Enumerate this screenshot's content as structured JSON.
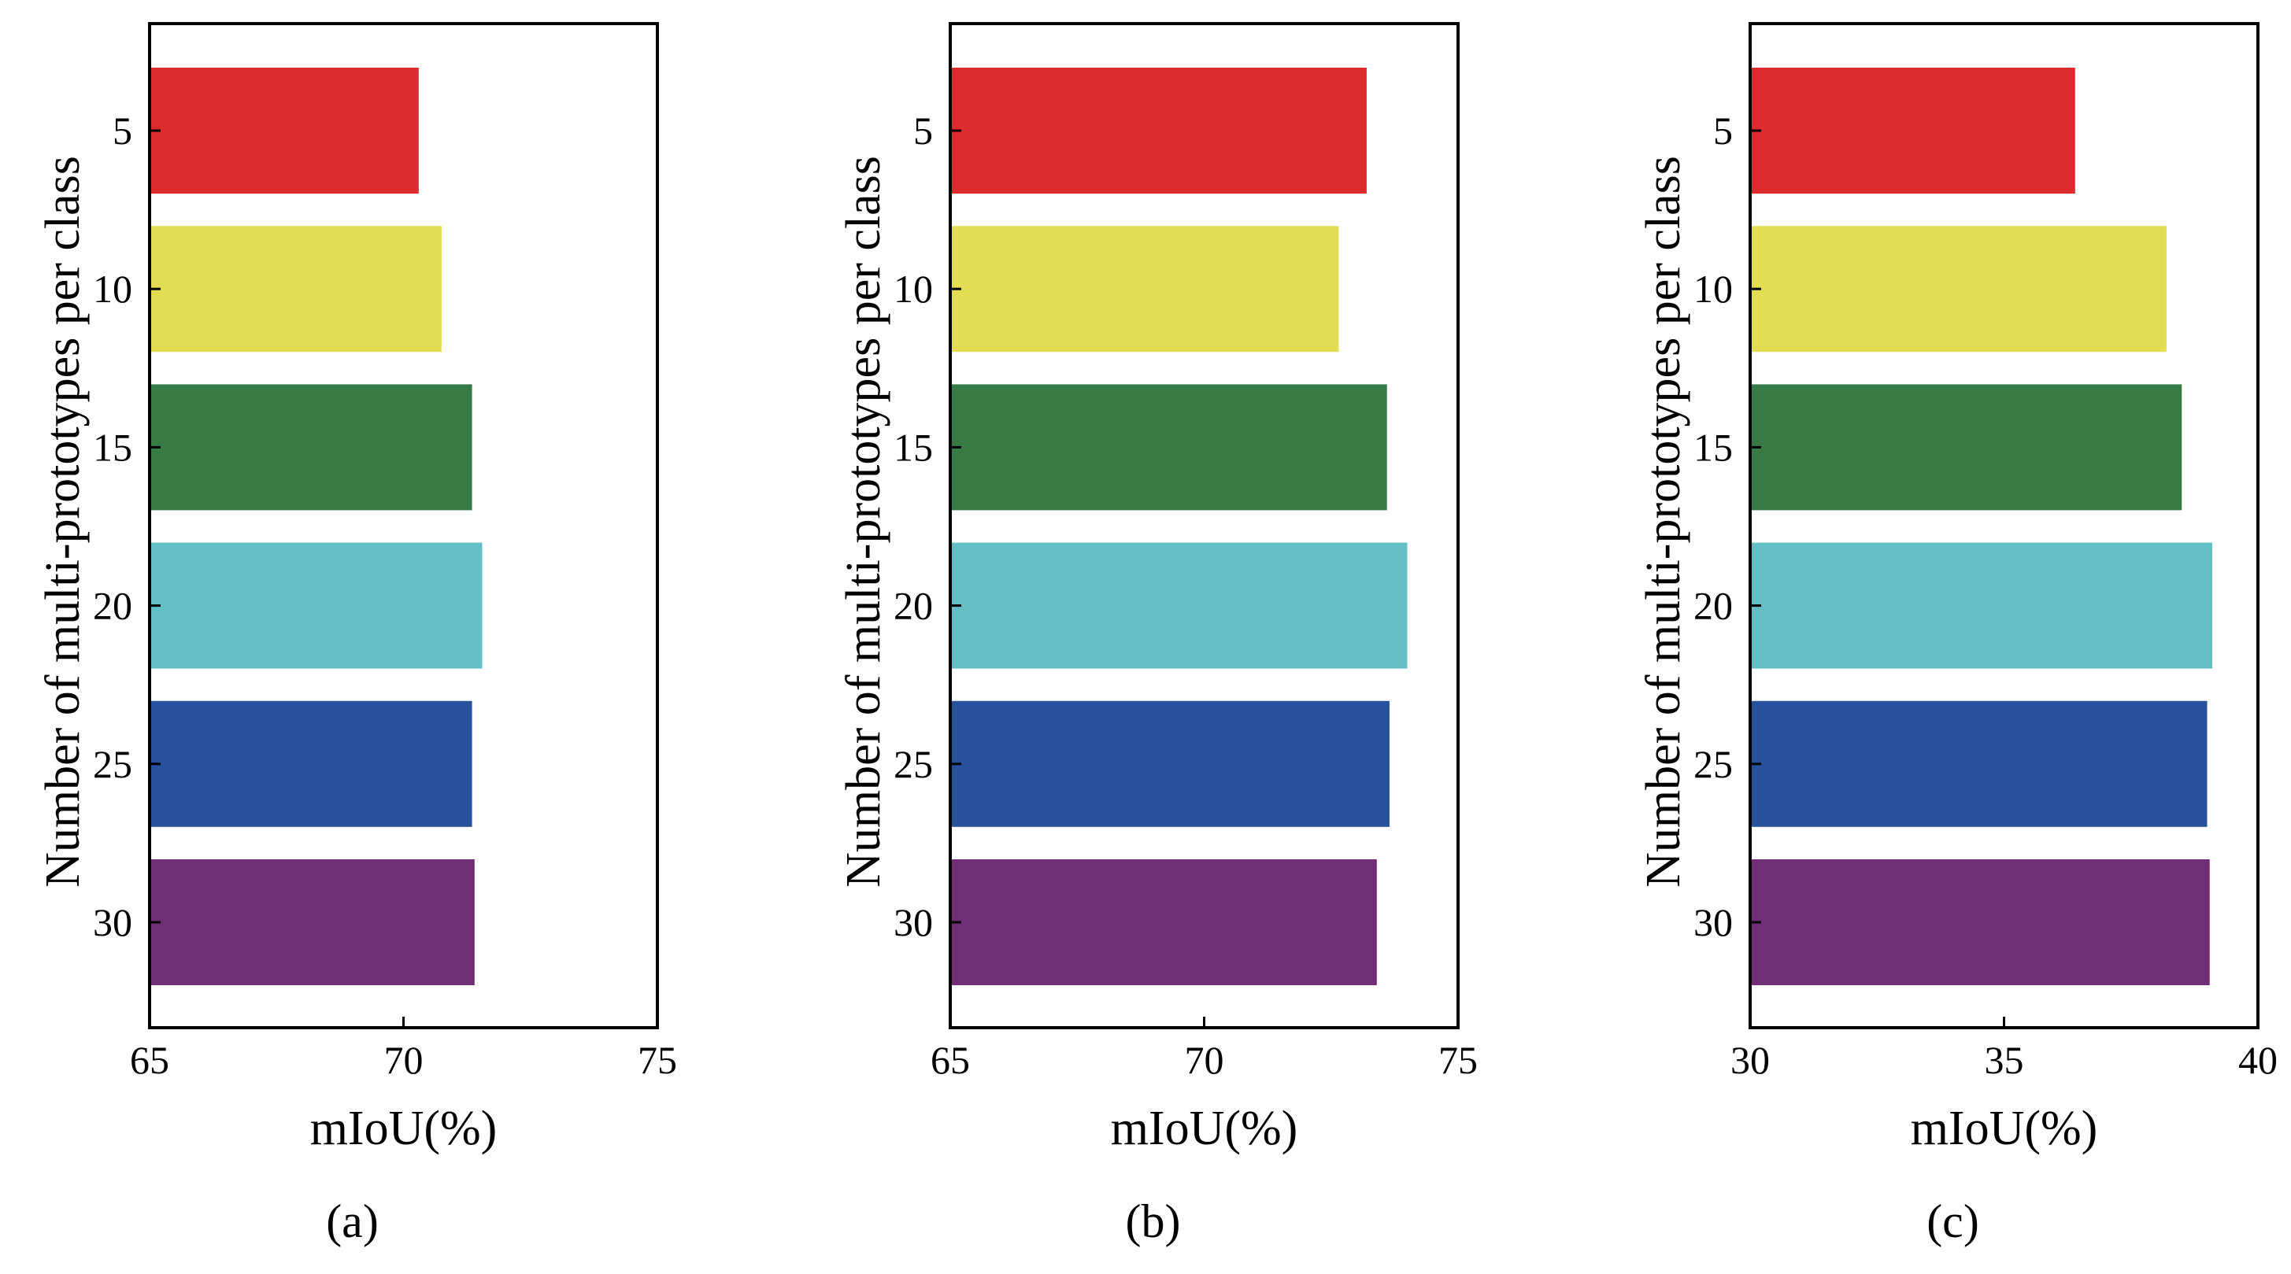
{
  "chart_data": [
    {
      "type": "bar",
      "orientation": "horizontal",
      "caption": "(a)",
      "categories": [
        "5",
        "10",
        "15",
        "20",
        "25",
        "30"
      ],
      "values": [
        70.3,
        70.75,
        71.35,
        71.55,
        71.35,
        71.4
      ],
      "colors": [
        "#dc2b2d",
        "#e2dd52",
        "#367b45",
        "#64bec6",
        "#27529b",
        "#722d77"
      ],
      "xlabel": "mIoU(%)",
      "ylabel": "Number of multi-prototypes per class",
      "xlim": [
        65,
        75
      ],
      "xticks": [
        65,
        70,
        75
      ],
      "tick_labels": [
        "65",
        "70",
        "75"
      ]
    },
    {
      "type": "bar",
      "orientation": "horizontal",
      "caption": "(b)",
      "categories": [
        "5",
        "10",
        "15",
        "20",
        "25",
        "30"
      ],
      "values": [
        73.2,
        72.65,
        73.6,
        74.0,
        73.65,
        73.4
      ],
      "colors": [
        "#dc2b2d",
        "#e2dd52",
        "#367b45",
        "#64bec6",
        "#27529b",
        "#722d77"
      ],
      "xlabel": "mIoU(%)",
      "ylabel": "Number of multi-prototypes per class",
      "xlim": [
        65,
        75
      ],
      "xticks": [
        65,
        70,
        75
      ],
      "tick_labels": [
        "65",
        "70",
        "75"
      ]
    },
    {
      "type": "bar",
      "orientation": "horizontal",
      "caption": "(c)",
      "categories": [
        "5",
        "10",
        "15",
        "20",
        "25",
        "30"
      ],
      "values": [
        36.4,
        38.2,
        38.5,
        39.1,
        39.0,
        39.05
      ],
      "colors": [
        "#dc2b2d",
        "#e2dd52",
        "#367b45",
        "#64bec6",
        "#27529b",
        "#722d77"
      ],
      "xlabel": "mIoU(%)",
      "ylabel": "Number of multi-prototypes per class",
      "xlim": [
        30,
        40
      ],
      "xticks": [
        30,
        35,
        40
      ],
      "tick_labels": [
        "30",
        "35",
        "40"
      ]
    }
  ]
}
